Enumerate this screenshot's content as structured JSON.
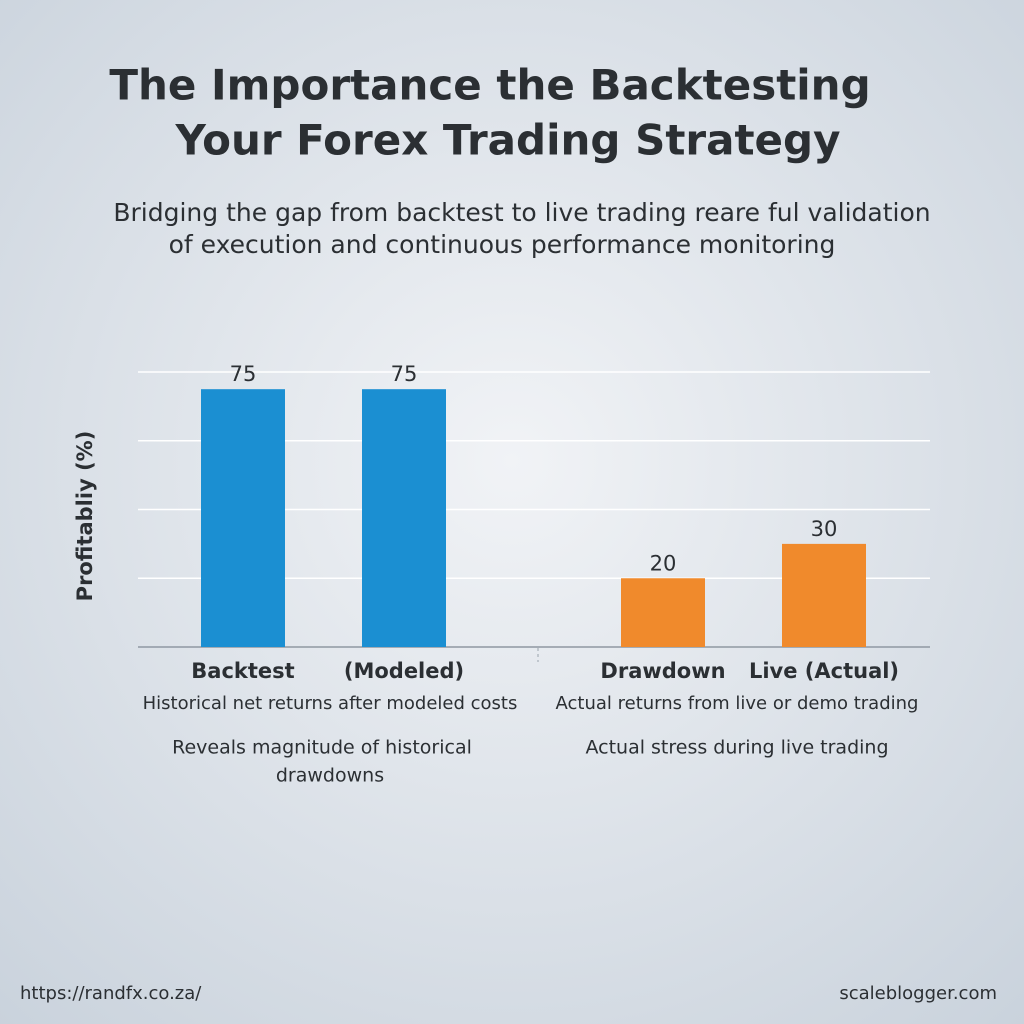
{
  "chart_data": {
    "type": "bar",
    "title": [
      "The Importance the Backtesting",
      "Your Forex Trading Strategy"
    ],
    "subtitle": [
      "Bridging the gap from backtest to live trading reare ful validation",
      "of execution and continuous performance monitoring"
    ],
    "y_label": "Profitabliy (%)",
    "categories": [
      "Backtest",
      "(Modeled)",
      "Drawdown",
      "Live (Actual)"
    ],
    "values": [
      75,
      75,
      20,
      30
    ],
    "colors": [
      "#1b8fd2",
      "#1b8fd2",
      "#f08a2c",
      "#f08a2c"
    ],
    "ylim": [
      0,
      80
    ],
    "yticks": [
      0,
      20,
      40,
      60,
      80
    ],
    "grid": true,
    "annotations": [
      [
        "Historical net returns after modeled costs",
        "Reveals magnitude of historical",
        "drawdowns"
      ],
      [
        "Actual returns from live or demo trading",
        "Actual stress during live trading"
      ]
    ]
  },
  "footer": {
    "left": "https://randfx.co.za/",
    "right": "scaleblogger.com"
  }
}
